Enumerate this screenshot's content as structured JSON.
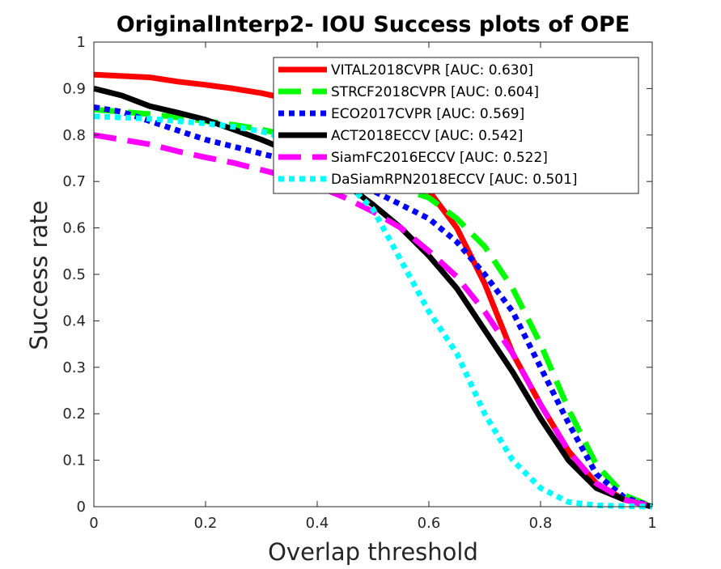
{
  "chart_data": {
    "type": "line",
    "title": "OriginalInterp2- IOU Success plots of OPE",
    "xlabel": "Overlap threshold",
    "ylabel": "Success rate",
    "xlim": [
      0,
      1
    ],
    "ylim": [
      0,
      1
    ],
    "xticks": [
      "0",
      "0.2",
      "0.4",
      "0.6",
      "0.8",
      "1"
    ],
    "yticks": [
      "0",
      "0.1",
      "0.2",
      "0.3",
      "0.4",
      "0.5",
      "0.6",
      "0.7",
      "0.8",
      "0.9",
      "1"
    ],
    "grid": false,
    "legend_position": "top-right",
    "x": [
      0,
      0.05,
      0.1,
      0.15,
      0.2,
      0.25,
      0.3,
      0.35,
      0.4,
      0.45,
      0.5,
      0.55,
      0.6,
      0.65,
      0.7,
      0.75,
      0.8,
      0.85,
      0.9,
      0.95,
      1
    ],
    "series": [
      {
        "name": "VITAL2018CVPR [AUC: 0.630]",
        "color": "#ff0000",
        "style": "solid",
        "values": [
          0.93,
          0.927,
          0.924,
          0.915,
          0.908,
          0.9,
          0.89,
          0.877,
          0.86,
          0.83,
          0.78,
          0.74,
          0.68,
          0.6,
          0.48,
          0.33,
          0.22,
          0.12,
          0.05,
          0.015,
          0
        ]
      },
      {
        "name": "STRCF2018CVPR [AUC: 0.604]",
        "color": "#00ff00",
        "style": "dashed",
        "values": [
          0.855,
          0.85,
          0.845,
          0.838,
          0.83,
          0.822,
          0.812,
          0.798,
          0.78,
          0.755,
          0.72,
          0.685,
          0.665,
          0.62,
          0.56,
          0.47,
          0.35,
          0.21,
          0.09,
          0.025,
          0
        ]
      },
      {
        "name": "ECO2017CVPR [AUC: 0.569]",
        "color": "#0000ff",
        "style": "dotted",
        "values": [
          0.86,
          0.85,
          0.83,
          0.81,
          0.79,
          0.775,
          0.76,
          0.745,
          0.73,
          0.7,
          0.68,
          0.65,
          0.62,
          0.57,
          0.5,
          0.42,
          0.3,
          0.18,
          0.07,
          0.02,
          0
        ]
      },
      {
        "name": "ACT2018ECCV [AUC: 0.542]",
        "color": "#000000",
        "style": "solid",
        "values": [
          0.9,
          0.885,
          0.862,
          0.848,
          0.833,
          0.812,
          0.79,
          0.765,
          0.735,
          0.695,
          0.65,
          0.6,
          0.54,
          0.47,
          0.38,
          0.29,
          0.19,
          0.1,
          0.04,
          0.015,
          0
        ]
      },
      {
        "name": "SiamFC2016ECCV [AUC: 0.522]",
        "color": "#ff00ff",
        "style": "dashed",
        "values": [
          0.8,
          0.79,
          0.78,
          0.765,
          0.752,
          0.74,
          0.725,
          0.71,
          0.69,
          0.665,
          0.635,
          0.6,
          0.55,
          0.495,
          0.42,
          0.33,
          0.22,
          0.12,
          0.05,
          0.015,
          0
        ]
      },
      {
        "name": "DaSiamRPN2018ECCV [AUC: 0.501]",
        "color": "#00ffff",
        "style": "dotted",
        "values": [
          0.84,
          0.838,
          0.835,
          0.83,
          0.825,
          0.818,
          0.808,
          0.79,
          0.755,
          0.7,
          0.64,
          0.53,
          0.42,
          0.33,
          0.2,
          0.1,
          0.04,
          0.01,
          0.003,
          0.001,
          0
        ]
      }
    ]
  }
}
